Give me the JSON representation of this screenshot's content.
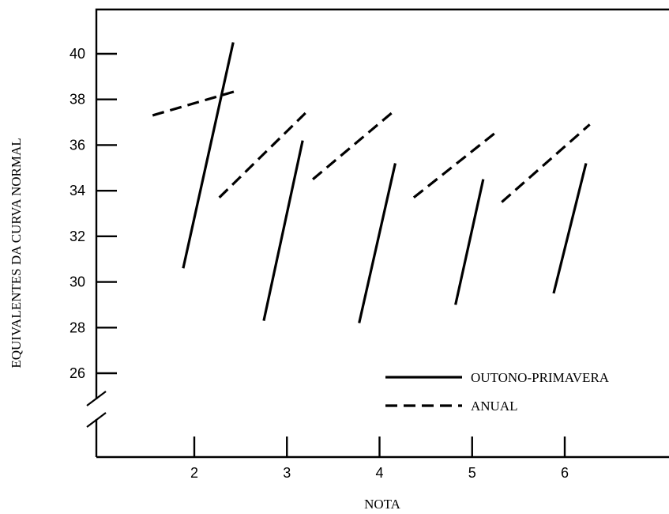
{
  "chart_data": {
    "type": "line",
    "xlabel": "NOTA",
    "ylabel": "EQUIVALENTES DA CURVA NORMAL",
    "x_ticks": [
      2,
      3,
      4,
      5,
      6
    ],
    "y_ticks": [
      26,
      28,
      30,
      32,
      34,
      36,
      38,
      40
    ],
    "xlim": [
      1.0,
      7.0
    ],
    "ylim": [
      22,
      42
    ],
    "y_axis_break": true,
    "grid": false,
    "legend_position": "bottom-right",
    "series": [
      {
        "name": "OUTONO-PRIMAVERA",
        "style": "solid",
        "segments": [
          {
            "x": [
              1.88,
              2.42
            ],
            "y": [
              30.6,
              40.5
            ]
          },
          {
            "x": [
              2.75,
              3.17
            ],
            "y": [
              28.3,
              36.2
            ]
          },
          {
            "x": [
              3.78,
              4.17
            ],
            "y": [
              28.2,
              35.2
            ]
          },
          {
            "x": [
              4.82,
              5.12
            ],
            "y": [
              29.0,
              34.5
            ]
          },
          {
            "x": [
              5.88,
              6.23
            ],
            "y": [
              29.5,
              35.2
            ]
          }
        ]
      },
      {
        "name": "ANUAL",
        "style": "dashed",
        "segments": [
          {
            "x": [
              1.55,
              2.48
            ],
            "y": [
              37.3,
              38.4
            ]
          },
          {
            "x": [
              2.27,
              3.2
            ],
            "y": [
              33.7,
              37.4
            ]
          },
          {
            "x": [
              3.28,
              4.13
            ],
            "y": [
              34.5,
              37.4
            ]
          },
          {
            "x": [
              4.37,
              5.27
            ],
            "y": [
              33.7,
              36.6
            ]
          },
          {
            "x": [
              5.32,
              6.27
            ],
            "y": [
              33.5,
              36.9
            ]
          }
        ]
      }
    ]
  }
}
